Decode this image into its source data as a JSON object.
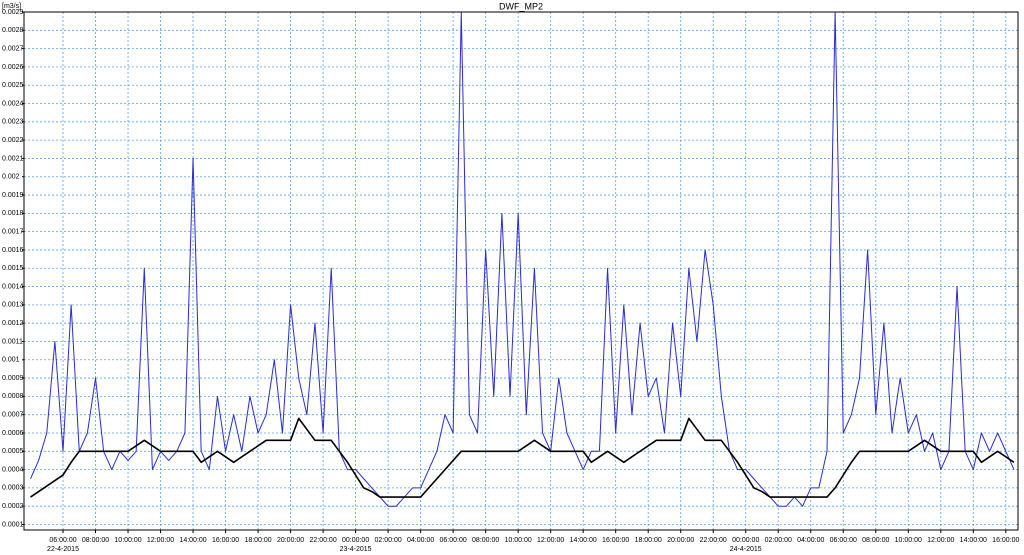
{
  "chart_data": {
    "type": "line",
    "title": "DWF_MP2",
    "ylabel": "[m3/s]",
    "grid": true,
    "xlim": [
      "2015-04-22T03:36",
      "2015-04-24T16:45"
    ],
    "ylim": [
      7e-05,
      0.0029
    ],
    "yticks": [
      0.0001,
      0.0002,
      0.0003,
      0.0004,
      0.0005,
      0.0006,
      0.0007,
      0.0008,
      0.0009,
      0.001,
      0.0011,
      0.0012,
      0.0013,
      0.0014,
      0.0015,
      0.0016,
      0.0017,
      0.0018,
      0.0019,
      0.002,
      0.0021,
      0.0022,
      0.0023,
      0.0024,
      0.0025,
      0.0026,
      0.0027,
      0.0028,
      0.0029
    ],
    "xticks": [
      {
        "value": "2015-04-22T06:00",
        "label": "06:00:00"
      },
      {
        "value": "2015-04-22T08:00",
        "label": "08:00:00"
      },
      {
        "value": "2015-04-22T10:00",
        "label": "10:00:00"
      },
      {
        "value": "2015-04-22T12:00",
        "label": "12:00:00"
      },
      {
        "value": "2015-04-22T14:00",
        "label": "14:00:00"
      },
      {
        "value": "2015-04-22T16:00",
        "label": "16:00:00"
      },
      {
        "value": "2015-04-22T18:00",
        "label": "18:00:00"
      },
      {
        "value": "2015-04-22T20:00",
        "label": "20:00:00"
      },
      {
        "value": "2015-04-22T22:00",
        "label": "22:00:00"
      },
      {
        "value": "2015-04-23T00:00",
        "label": "00:00:00"
      },
      {
        "value": "2015-04-23T02:00",
        "label": "02:00:00"
      },
      {
        "value": "2015-04-23T04:00",
        "label": "04:00:00"
      },
      {
        "value": "2015-04-23T06:00",
        "label": "06:00:00"
      },
      {
        "value": "2015-04-23T08:00",
        "label": "08:00:00"
      },
      {
        "value": "2015-04-23T10:00",
        "label": "10:00:00"
      },
      {
        "value": "2015-04-23T12:00",
        "label": "12:00:00"
      },
      {
        "value": "2015-04-23T14:00",
        "label": "14:00:00"
      },
      {
        "value": "2015-04-23T16:00",
        "label": "16:00:00"
      },
      {
        "value": "2015-04-23T18:00",
        "label": "18:00:00"
      },
      {
        "value": "2015-04-23T20:00",
        "label": "20:00:00"
      },
      {
        "value": "2015-04-23T22:00",
        "label": "22:00:00"
      },
      {
        "value": "2015-04-24T00:00",
        "label": "00:00:00"
      },
      {
        "value": "2015-04-24T02:00",
        "label": "02:00:00"
      },
      {
        "value": "2015-04-24T04:00",
        "label": "04:00:00"
      },
      {
        "value": "2015-04-24T06:00",
        "label": "06:00:00"
      },
      {
        "value": "2015-04-24T08:00",
        "label": "08:00:00"
      },
      {
        "value": "2015-04-24T10:00",
        "label": "10:00:00"
      },
      {
        "value": "2015-04-24T12:00",
        "label": "12:00:00"
      },
      {
        "value": "2015-04-24T14:00",
        "label": "14:00:00"
      },
      {
        "value": "2015-04-24T16:00",
        "label": "16:00:00"
      }
    ],
    "xdates": [
      {
        "value": "2015-04-22T06:00",
        "label": "22-4-2015"
      },
      {
        "value": "2015-04-23T00:00",
        "label": "23-4-2015"
      },
      {
        "value": "2015-04-24T00:00",
        "label": "24-4-2015"
      }
    ],
    "x": [
      "2015-04-22T04:00",
      "2015-04-22T04:30",
      "2015-04-22T05:00",
      "2015-04-22T05:30",
      "2015-04-22T06:00",
      "2015-04-22T06:30",
      "2015-04-22T07:00",
      "2015-04-22T07:30",
      "2015-04-22T08:00",
      "2015-04-22T08:30",
      "2015-04-22T09:00",
      "2015-04-22T09:30",
      "2015-04-22T10:00",
      "2015-04-22T10:30",
      "2015-04-22T11:00",
      "2015-04-22T11:30",
      "2015-04-22T12:00",
      "2015-04-22T12:30",
      "2015-04-22T13:00",
      "2015-04-22T13:30",
      "2015-04-22T14:00",
      "2015-04-22T14:30",
      "2015-04-22T15:00",
      "2015-04-22T15:30",
      "2015-04-22T16:00",
      "2015-04-22T16:30",
      "2015-04-22T17:00",
      "2015-04-22T17:30",
      "2015-04-22T18:00",
      "2015-04-22T18:30",
      "2015-04-22T19:00",
      "2015-04-22T19:30",
      "2015-04-22T20:00",
      "2015-04-22T20:30",
      "2015-04-22T21:00",
      "2015-04-22T21:30",
      "2015-04-22T22:00",
      "2015-04-22T22:30",
      "2015-04-22T23:00",
      "2015-04-22T23:30",
      "2015-04-23T00:00",
      "2015-04-23T00:30",
      "2015-04-23T01:00",
      "2015-04-23T01:30",
      "2015-04-23T02:00",
      "2015-04-23T02:30",
      "2015-04-23T03:00",
      "2015-04-23T03:30",
      "2015-04-23T04:00",
      "2015-04-23T04:30",
      "2015-04-23T05:00",
      "2015-04-23T05:30",
      "2015-04-23T06:00",
      "2015-04-23T06:30",
      "2015-04-23T07:00",
      "2015-04-23T07:30",
      "2015-04-23T08:00",
      "2015-04-23T08:30",
      "2015-04-23T09:00",
      "2015-04-23T09:30",
      "2015-04-23T10:00",
      "2015-04-23T10:30",
      "2015-04-23T11:00",
      "2015-04-23T11:30",
      "2015-04-23T12:00",
      "2015-04-23T12:30",
      "2015-04-23T13:00",
      "2015-04-23T13:30",
      "2015-04-23T14:00",
      "2015-04-23T14:30",
      "2015-04-23T15:00",
      "2015-04-23T15:30",
      "2015-04-23T16:00",
      "2015-04-23T16:30",
      "2015-04-23T17:00",
      "2015-04-23T17:30",
      "2015-04-23T18:00",
      "2015-04-23T18:30",
      "2015-04-23T19:00",
      "2015-04-23T19:30",
      "2015-04-23T20:00",
      "2015-04-23T20:30",
      "2015-04-23T21:00",
      "2015-04-23T21:30",
      "2015-04-23T22:00",
      "2015-04-23T22:30",
      "2015-04-23T23:00",
      "2015-04-23T23:30",
      "2015-04-24T00:00",
      "2015-04-24T00:30",
      "2015-04-24T01:00",
      "2015-04-24T01:30",
      "2015-04-24T02:00",
      "2015-04-24T02:30",
      "2015-04-24T03:00",
      "2015-04-24T03:30",
      "2015-04-24T04:00",
      "2015-04-24T04:30",
      "2015-04-24T05:00",
      "2015-04-24T05:30",
      "2015-04-24T06:00",
      "2015-04-24T06:30",
      "2015-04-24T07:00",
      "2015-04-24T07:30",
      "2015-04-24T08:00",
      "2015-04-24T08:30",
      "2015-04-24T09:00",
      "2015-04-24T09:30",
      "2015-04-24T10:00",
      "2015-04-24T10:30",
      "2015-04-24T11:00",
      "2015-04-24T11:30",
      "2015-04-24T12:00",
      "2015-04-24T12:30",
      "2015-04-24T13:00",
      "2015-04-24T13:30",
      "2015-04-24T14:00",
      "2015-04-24T14:30",
      "2015-04-24T15:00",
      "2015-04-24T15:30",
      "2015-04-24T16:00",
      "2015-04-24T16:30"
    ],
    "series": [
      {
        "color": "#2b2bd0",
        "values": [
          0.00035,
          0.00045,
          0.0006,
          0.0011,
          0.0005,
          0.0013,
          0.0005,
          0.0006,
          0.0009,
          0.0005,
          0.0004,
          0.0005,
          0.00045,
          0.0005,
          0.0015,
          0.0004,
          0.0005,
          0.00045,
          0.0005,
          0.0006,
          0.0021,
          0.0005,
          0.0004,
          0.0008,
          0.0005,
          0.0007,
          0.0005,
          0.0008,
          0.0006,
          0.0007,
          0.001,
          0.0006,
          0.0013,
          0.0009,
          0.0007,
          0.0012,
          0.0006,
          0.0015,
          0.0005,
          0.0004,
          0.0004,
          0.00035,
          0.0003,
          0.00025,
          0.0002,
          0.0002,
          0.00025,
          0.0003,
          0.0003,
          0.0004,
          0.0005,
          0.0007,
          0.0006,
          0.0029,
          0.0007,
          0.0006,
          0.0016,
          0.0008,
          0.0018,
          0.0008,
          0.0018,
          0.0007,
          0.0015,
          0.0006,
          0.0005,
          0.0009,
          0.0006,
          0.0005,
          0.0004,
          0.0005,
          0.0005,
          0.0015,
          0.0006,
          0.0013,
          0.0007,
          0.0012,
          0.0008,
          0.0009,
          0.0006,
          0.0012,
          0.0008,
          0.0015,
          0.0011,
          0.0016,
          0.0013,
          0.0008,
          0.0005,
          0.0004,
          0.0004,
          0.00035,
          0.0003,
          0.00025,
          0.0002,
          0.0002,
          0.00025,
          0.0002,
          0.0003,
          0.0003,
          0.0005,
          0.0029,
          0.0006,
          0.0007,
          0.0009,
          0.0016,
          0.0007,
          0.0012,
          0.0006,
          0.0009,
          0.0006,
          0.0007,
          0.0005,
          0.0006,
          0.0004,
          0.0005,
          0.0014,
          0.0005,
          0.0004,
          0.0006,
          0.0005,
          0.0006,
          0.0005,
          0.0004
        ]
      },
      {
        "color": "#000000",
        "values": [
          0.00025,
          0.00028,
          0.00031,
          0.00034,
          0.00037,
          0.00044,
          0.0005,
          0.0005,
          0.0005,
          0.0005,
          0.0005,
          0.0005,
          0.0005,
          0.00053,
          0.00056,
          0.00053,
          0.0005,
          0.0005,
          0.0005,
          0.0005,
          0.0005,
          0.00044,
          0.00047,
          0.0005,
          0.00047,
          0.00044,
          0.00047,
          0.0005,
          0.00053,
          0.00056,
          0.00056,
          0.00056,
          0.00056,
          0.00068,
          0.00062,
          0.00056,
          0.00056,
          0.00056,
          0.0005,
          0.00044,
          0.00037,
          0.0003,
          0.00028,
          0.00025,
          0.00025,
          0.00025,
          0.00025,
          0.00025,
          0.00025,
          0.0003,
          0.00035,
          0.0004,
          0.00045,
          0.0005,
          0.0005,
          0.0005,
          0.0005,
          0.0005,
          0.0005,
          0.0005,
          0.0005,
          0.00053,
          0.00056,
          0.00053,
          0.0005,
          0.0005,
          0.0005,
          0.0005,
          0.0005,
          0.00044,
          0.00047,
          0.0005,
          0.00047,
          0.00044,
          0.00047,
          0.0005,
          0.00053,
          0.00056,
          0.00056,
          0.00056,
          0.00056,
          0.00068,
          0.00062,
          0.00056,
          0.00056,
          0.00056,
          0.0005,
          0.00044,
          0.00037,
          0.0003,
          0.00028,
          0.00025,
          0.00025,
          0.00025,
          0.00025,
          0.00025,
          0.00025,
          0.00025,
          0.00025,
          0.0003,
          0.00037,
          0.00044,
          0.0005,
          0.0005,
          0.0005,
          0.0005,
          0.0005,
          0.0005,
          0.0005,
          0.00053,
          0.00056,
          0.00053,
          0.0005,
          0.0005,
          0.0005,
          0.0005,
          0.0005,
          0.00044,
          0.00047,
          0.0005,
          0.00047,
          0.00044
        ]
      }
    ]
  }
}
